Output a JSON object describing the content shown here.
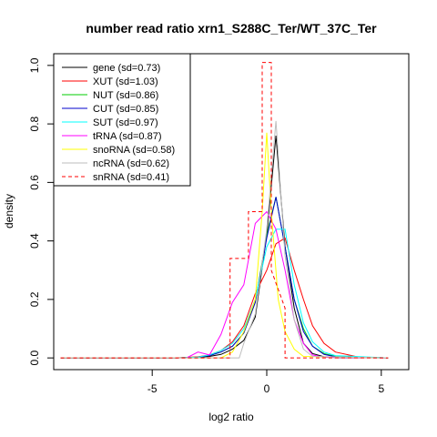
{
  "chart_data": {
    "type": "line",
    "title": "number read ratio xrn1_S288C_Ter/WT_37C_Ter",
    "xlabel": "log2 ratio",
    "ylabel": "density",
    "xlim": [
      -9.3,
      6.2
    ],
    "ylim": [
      -0.04,
      1.04
    ],
    "xticks": [
      -5,
      0,
      5
    ],
    "xtick_labels": [
      "-5",
      "0",
      "5"
    ],
    "yticks": [
      0.0,
      0.2,
      0.4,
      0.6,
      0.8,
      1.0
    ],
    "ytick_labels": [
      "0.0",
      "0.2",
      "0.4",
      "0.6",
      "0.8",
      "1.0"
    ],
    "grid": false,
    "legend_position": "top-left",
    "series": [
      {
        "name": "gene (sd=0.73)",
        "color": "#000000",
        "dash": "solid",
        "points": [
          [
            -9,
            0
          ],
          [
            -4,
            0
          ],
          [
            -3,
            0.002
          ],
          [
            -2.5,
            0.005
          ],
          [
            -2,
            0.012
          ],
          [
            -1.5,
            0.03
          ],
          [
            -1,
            0.06
          ],
          [
            -0.5,
            0.14
          ],
          [
            0,
            0.42
          ],
          [
            0.4,
            0.76
          ],
          [
            0.8,
            0.38
          ],
          [
            1.2,
            0.17
          ],
          [
            1.6,
            0.05
          ],
          [
            2,
            0.015
          ],
          [
            2.5,
            0.004
          ],
          [
            3,
            0.001
          ],
          [
            5.3,
            0
          ]
        ]
      },
      {
        "name": "XUT (sd=1.03)",
        "color": "#ff0000",
        "dash": "solid",
        "points": [
          [
            -9,
            0
          ],
          [
            -4,
            0
          ],
          [
            -3,
            0.004
          ],
          [
            -2.5,
            0.01
          ],
          [
            -2,
            0.025
          ],
          [
            -1.5,
            0.055
          ],
          [
            -1,
            0.11
          ],
          [
            -0.5,
            0.22
          ],
          [
            0,
            0.3
          ],
          [
            0.4,
            0.39
          ],
          [
            0.8,
            0.41
          ],
          [
            1.2,
            0.3
          ],
          [
            1.6,
            0.2
          ],
          [
            2,
            0.11
          ],
          [
            2.5,
            0.05
          ],
          [
            3,
            0.02
          ],
          [
            4,
            0.003
          ],
          [
            5.3,
            0
          ]
        ]
      },
      {
        "name": "NUT (sd=0.86)",
        "color": "#00cc00",
        "dash": "solid",
        "points": [
          [
            -9,
            0
          ],
          [
            -4,
            0
          ],
          [
            -3,
            0.002
          ],
          [
            -2.5,
            0.008
          ],
          [
            -2,
            0.02
          ],
          [
            -1.5,
            0.04
          ],
          [
            -1,
            0.085
          ],
          [
            -0.5,
            0.19
          ],
          [
            0,
            0.42
          ],
          [
            0.4,
            0.55
          ],
          [
            0.8,
            0.38
          ],
          [
            1.2,
            0.2
          ],
          [
            1.6,
            0.1
          ],
          [
            2,
            0.04
          ],
          [
            2.5,
            0.015
          ],
          [
            3,
            0.005
          ],
          [
            5.3,
            0
          ]
        ]
      },
      {
        "name": "CUT (sd=0.85)",
        "color": "#0000cc",
        "dash": "solid",
        "points": [
          [
            -9,
            0
          ],
          [
            -4,
            0
          ],
          [
            -3,
            0.002
          ],
          [
            -2.5,
            0.008
          ],
          [
            -2,
            0.02
          ],
          [
            -1.5,
            0.04
          ],
          [
            -1,
            0.085
          ],
          [
            -0.5,
            0.19
          ],
          [
            0,
            0.41
          ],
          [
            0.4,
            0.55
          ],
          [
            0.8,
            0.38
          ],
          [
            1.2,
            0.2
          ],
          [
            1.6,
            0.09
          ],
          [
            2,
            0.04
          ],
          [
            2.5,
            0.012
          ],
          [
            3,
            0.004
          ],
          [
            5.3,
            0
          ]
        ]
      },
      {
        "name": "SUT (sd=0.97)",
        "color": "#00ffff",
        "dash": "solid",
        "points": [
          [
            -9,
            0
          ],
          [
            -4,
            0
          ],
          [
            -3,
            0.003
          ],
          [
            -2.5,
            0.01
          ],
          [
            -2,
            0.025
          ],
          [
            -1.5,
            0.05
          ],
          [
            -1,
            0.1
          ],
          [
            -0.5,
            0.2
          ],
          [
            0,
            0.38
          ],
          [
            0.4,
            0.44
          ],
          [
            0.8,
            0.44
          ],
          [
            1.2,
            0.25
          ],
          [
            1.6,
            0.12
          ],
          [
            2,
            0.055
          ],
          [
            2.5,
            0.02
          ],
          [
            3,
            0.008
          ],
          [
            5.3,
            0
          ]
        ]
      },
      {
        "name": "tRNA (sd=0.87)",
        "color": "#ff00ff",
        "dash": "solid",
        "points": [
          [
            -9,
            0
          ],
          [
            -3.5,
            0
          ],
          [
            -3,
            0.02
          ],
          [
            -2.5,
            0.01
          ],
          [
            -2,
            0.08
          ],
          [
            -1.5,
            0.19
          ],
          [
            -1,
            0.25
          ],
          [
            -0.5,
            0.46
          ],
          [
            0,
            0.5
          ],
          [
            0.4,
            0.44
          ],
          [
            0.8,
            0.3
          ],
          [
            1.2,
            0.13
          ],
          [
            1.6,
            0.05
          ],
          [
            2,
            0.01
          ],
          [
            2.5,
            0.002
          ],
          [
            5.3,
            0
          ]
        ]
      },
      {
        "name": "snoRNA (sd=0.58)",
        "color": "#ffff00",
        "dash": "solid",
        "points": [
          [
            -9,
            0
          ],
          [
            -2,
            0
          ],
          [
            -1.5,
            0.02
          ],
          [
            -1,
            0.09
          ],
          [
            -0.5,
            0.2
          ],
          [
            -0.2,
            0.5
          ],
          [
            0,
            0.77
          ],
          [
            0.2,
            0.5
          ],
          [
            0.5,
            0.2
          ],
          [
            0.8,
            0.09
          ],
          [
            1.2,
            0.03
          ],
          [
            1.6,
            0.005
          ],
          [
            5.3,
            0
          ]
        ]
      },
      {
        "name": "ncRNA (sd=0.62)",
        "color": "#bebebe",
        "dash": "solid",
        "points": [
          [
            -9,
            0
          ],
          [
            -1.2,
            0
          ],
          [
            -1,
            0.05
          ],
          [
            -0.5,
            0.15
          ],
          [
            0,
            0.44
          ],
          [
            0.4,
            0.81
          ],
          [
            0.8,
            0.35
          ],
          [
            1.2,
            0.13
          ],
          [
            1.6,
            0.03
          ],
          [
            2,
            0.005
          ],
          [
            5.3,
            0
          ]
        ]
      },
      {
        "name": "snRNA (sd=0.41)",
        "color": "#ff0000",
        "dash": "dashed",
        "points": [
          [
            -9,
            0
          ],
          [
            -1.6,
            0
          ],
          [
            -1.6,
            0.34
          ],
          [
            -0.8,
            0.34
          ],
          [
            -0.8,
            0.5
          ],
          [
            -0.2,
            0.5
          ],
          [
            -0.2,
            1.01
          ],
          [
            0.2,
            1.01
          ],
          [
            0.2,
            0.3
          ],
          [
            0.8,
            0.17
          ],
          [
            0.8,
            0
          ],
          [
            5.3,
            0
          ]
        ]
      }
    ]
  }
}
